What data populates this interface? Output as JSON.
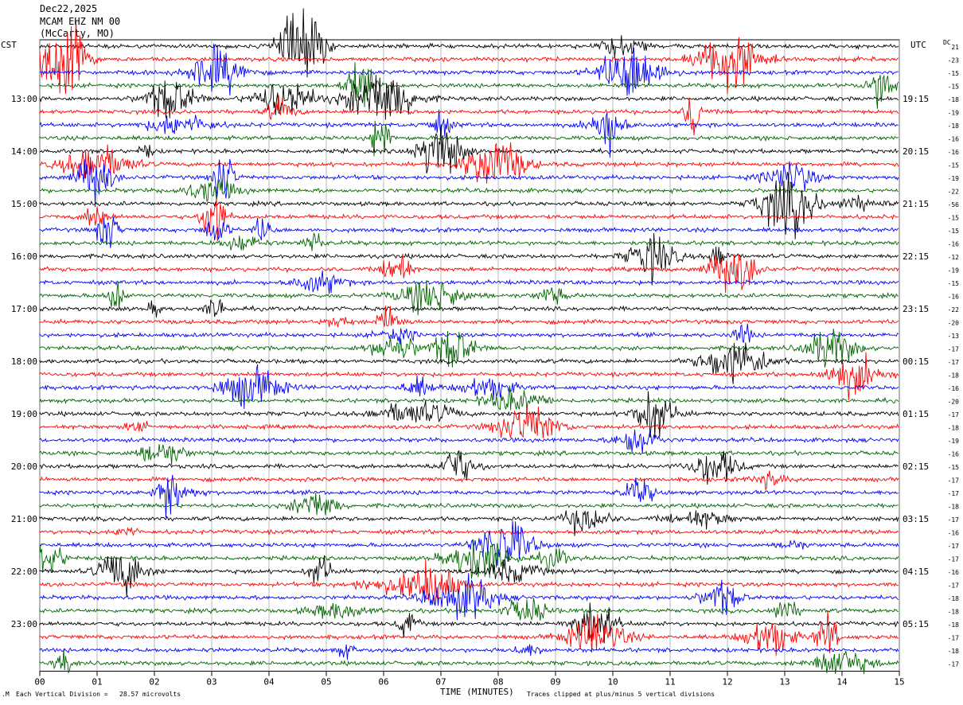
{
  "header": {
    "date": "Dec22,2025",
    "station": "MCAM EHZ NM 00",
    "location": "(McCarty, MO)",
    "left_tz": "CST",
    "right_tz": "UTC",
    "dc_label": "DC"
  },
  "chart_data": {
    "type": "line",
    "xlabel": "TIME (MINUTES)",
    "x_ticks": [
      "00",
      "01",
      "02",
      "03",
      "04",
      "05",
      "06",
      "07",
      "08",
      "09",
      "10",
      "11",
      "12",
      "13",
      "14",
      "15"
    ],
    "xlim": [
      0,
      15
    ],
    "trace_count": 48,
    "trace_colors": [
      "#000000",
      "#ff0000",
      "#0000ff",
      "#006400"
    ],
    "left_time_labels": [
      "13:00",
      "14:00",
      "15:00",
      "16:00",
      "17:00",
      "18:00",
      "19:00",
      "20:00",
      "21:00",
      "22:00",
      "23:00"
    ],
    "right_time_labels": [
      "19:15",
      "20:15",
      "21:15",
      "22:15",
      "23:15",
      "00:15",
      "01:15",
      "02:15",
      "03:15",
      "04:15",
      "05:15"
    ],
    "dc_offsets": [
      "21",
      "-23",
      "-15",
      "-15",
      "-18",
      "-19",
      "-18",
      "-16",
      "-16",
      "-15",
      "-19",
      "-22",
      "-56",
      "-15",
      "-15",
      "-16",
      "-12",
      "-19",
      "-15",
      "-16",
      "-22",
      "-20",
      "-13",
      "-17",
      "-17",
      "-18",
      "-16",
      "-20",
      "-17",
      "-18",
      "-19",
      "-16",
      "-15",
      "-17",
      "-17",
      "-18",
      "-17",
      "-16",
      "-17",
      "-17",
      "-16",
      "-17",
      "-18",
      "-18",
      "-18",
      "-17",
      "-18",
      "-17"
    ],
    "vertical_division": "Each Vertical Division =   28.57 microvolts",
    "clip_note": "Traces clipped at plus/minus 5 vertical divisions"
  }
}
